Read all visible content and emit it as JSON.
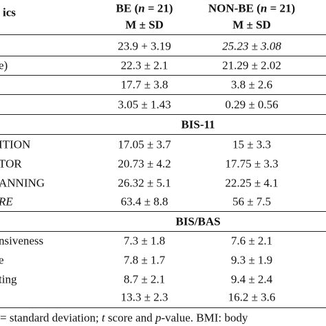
{
  "header": {
    "label": "ics",
    "be_title": [
      "BE (",
      "n",
      " = 21)"
    ],
    "non_be_title": [
      "NON-BE (",
      "n",
      " = 21)"
    ],
    "be_sub": "M ± SD",
    "non_be_sub": "M ± SD"
  },
  "sections": [
    {
      "rows": [
        {
          "be": "23.9 + 3.19",
          "non_be": "25.23 ± 3.08"
        },
        {
          "label": "e)",
          "be": "22.3 ± 2.1",
          "non_be": "21.29 ± 2.02"
        },
        {
          "be": "17.7 ± 3.8",
          "non_be": "3.8 ± 2.6"
        },
        {
          "be": "3.05 ± 1.43",
          "non_be": "0.29 ± 0.56"
        }
      ]
    },
    {
      "title": "BIS-11",
      "rows": [
        {
          "label": "ITION",
          "be": "17.05 ± 3.7",
          "non_be": "15 ± 3.3"
        },
        {
          "label": "TOR",
          "be": "20.73 ± 4.2",
          "non_be": "17.75 ± 3.3"
        },
        {
          "label": "ANNING",
          "be": "26.32 ± 5.1",
          "non_be": "22.25 ± 4.1"
        },
        {
          "label": "RE",
          "be": "63.4 ± 8.8",
          "non_be": "56 ± 7.5"
        }
      ]
    },
    {
      "title": "BIS/BAS",
      "rows": [
        {
          "label": "nsiveness",
          "be": "7.3 ± 1.8",
          "non_be": "7.6 ± 2.1"
        },
        {
          "label": "e",
          "be": "7.8 ± 1.7",
          "non_be": "9.3 ± 1.9"
        },
        {
          "label": "ting",
          "be": "8.7 ± 2.1",
          "non_be": "9.4 ± 2.4"
        },
        {
          "be": "13.3 ± 2.3",
          "non_be": "16.2 ± 3.6"
        }
      ]
    }
  ],
  "footer": [
    "= standard deviation; ",
    "t",
    " score and ",
    "p",
    "-value. BMI: body"
  ]
}
